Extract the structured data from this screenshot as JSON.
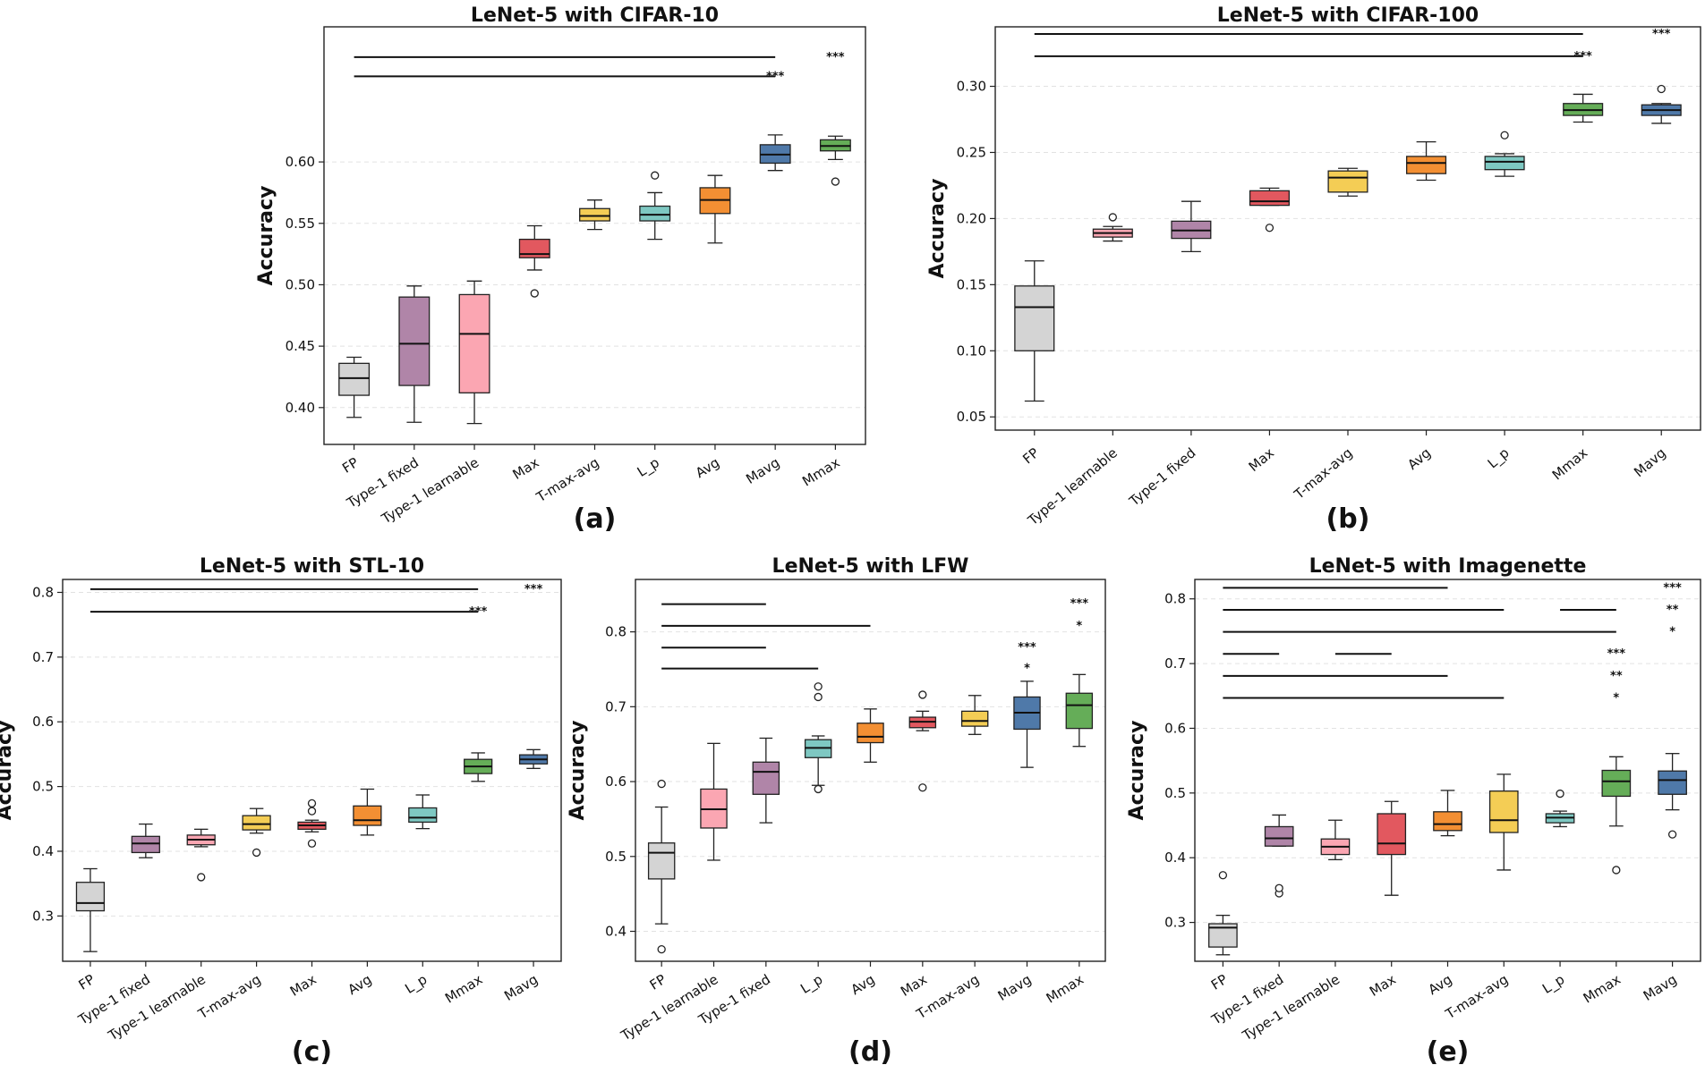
{
  "chart_data": [
    {
      "type": "box",
      "title": "LeNet-5 with CIFAR-10",
      "panel_label": "(a)",
      "ylabel": "Accuracy",
      "ylim": [
        0.37,
        0.71
      ],
      "yticks": [
        "0.40",
        "0.45",
        "0.50",
        "0.55",
        "0.60"
      ],
      "grid": true,
      "categories": [
        "FP",
        "Type-1 fixed",
        "Type-1 learnable",
        "Max",
        "T-max-avg",
        "L_p",
        "Avg",
        "Mavg",
        "Mmax"
      ],
      "colors": [
        "#d4d4d4",
        "#b085a8",
        "#fba6b2",
        "#e2585f",
        "#f4cd55",
        "#7ec8c2",
        "#f38f33",
        "#4f79a9",
        "#65ad58"
      ],
      "boxes": [
        {
          "whislo": 0.392,
          "q1": 0.41,
          "med": 0.424,
          "q3": 0.436,
          "whishi": 0.441,
          "fliers": []
        },
        {
          "whislo": 0.388,
          "q1": 0.418,
          "med": 0.452,
          "q3": 0.49,
          "whishi": 0.499,
          "fliers": []
        },
        {
          "whislo": 0.387,
          "q1": 0.412,
          "med": 0.46,
          "q3": 0.492,
          "whishi": 0.503,
          "fliers": []
        },
        {
          "whislo": 0.512,
          "q1": 0.522,
          "med": 0.525,
          "q3": 0.537,
          "whishi": 0.548,
          "fliers": [
            0.493
          ]
        },
        {
          "whislo": 0.545,
          "q1": 0.552,
          "med": 0.556,
          "q3": 0.562,
          "whishi": 0.569,
          "fliers": []
        },
        {
          "whislo": 0.537,
          "q1": 0.552,
          "med": 0.557,
          "q3": 0.564,
          "whishi": 0.575,
          "fliers": [
            0.589
          ]
        },
        {
          "whislo": 0.534,
          "q1": 0.558,
          "med": 0.569,
          "q3": 0.579,
          "whishi": 0.589,
          "fliers": []
        },
        {
          "whislo": 0.593,
          "q1": 0.599,
          "med": 0.606,
          "q3": 0.614,
          "whishi": 0.622,
          "fliers": []
        },
        {
          "whislo": 0.602,
          "q1": 0.609,
          "med": 0.613,
          "q3": 0.618,
          "whishi": 0.621,
          "fliers": [
            0.584
          ]
        }
      ],
      "sig_lines": [
        {
          "from": 0,
          "to": 7,
          "y": 0.6853
        },
        {
          "from": 0,
          "to": 7,
          "y": 0.6697
        }
      ],
      "sig_labels": [
        {
          "cat": 8,
          "y": 0.6853,
          "text": "***"
        },
        {
          "cat": 7,
          "y": 0.6697,
          "text": "***"
        }
      ]
    },
    {
      "type": "box",
      "title": "LeNet-5 with CIFAR-100",
      "panel_label": "(b)",
      "ylabel": "Accuracy",
      "ylim": [
        0.04,
        0.345
      ],
      "yticks": [
        "0.05",
        "0.10",
        "0.15",
        "0.20",
        "0.25",
        "0.30"
      ],
      "grid": true,
      "categories": [
        "FP",
        "Type-1 learnable",
        "Type-1 fixed",
        "Max",
        "T-max-avg",
        "Avg",
        "L_p",
        "Mmax",
        "Mavg"
      ],
      "colors": [
        "#d4d4d4",
        "#fba6b2",
        "#b085a8",
        "#e2585f",
        "#f4cd55",
        "#f38f33",
        "#7ec8c2",
        "#65ad58",
        "#4f79a9"
      ],
      "boxes": [
        {
          "whislo": 0.062,
          "q1": 0.1,
          "med": 0.133,
          "q3": 0.149,
          "whishi": 0.168,
          "fliers": []
        },
        {
          "whislo": 0.183,
          "q1": 0.186,
          "med": 0.189,
          "q3": 0.192,
          "whishi": 0.194,
          "fliers": [
            0.201
          ]
        },
        {
          "whislo": 0.175,
          "q1": 0.185,
          "med": 0.191,
          "q3": 0.198,
          "whishi": 0.213,
          "fliers": []
        },
        {
          "whislo": 0.21,
          "q1": 0.21,
          "med": 0.213,
          "q3": 0.221,
          "whishi": 0.223,
          "fliers": [
            0.193
          ]
        },
        {
          "whislo": 0.217,
          "q1": 0.22,
          "med": 0.231,
          "q3": 0.236,
          "whishi": 0.238,
          "fliers": []
        },
        {
          "whislo": 0.229,
          "q1": 0.234,
          "med": 0.242,
          "q3": 0.247,
          "whishi": 0.258,
          "fliers": []
        },
        {
          "whislo": 0.232,
          "q1": 0.237,
          "med": 0.243,
          "q3": 0.247,
          "whishi": 0.249,
          "fliers": [
            0.263
          ]
        },
        {
          "whislo": 0.273,
          "q1": 0.278,
          "med": 0.282,
          "q3": 0.287,
          "whishi": 0.294,
          "fliers": []
        },
        {
          "whislo": 0.272,
          "q1": 0.278,
          "med": 0.282,
          "q3": 0.286,
          "whishi": 0.287,
          "fliers": [
            0.298
          ]
        }
      ],
      "sig_lines": [
        {
          "from": 0,
          "to": 7,
          "y": 0.3396
        },
        {
          "from": 0,
          "to": 7,
          "y": 0.3228
        }
      ],
      "sig_labels": [
        {
          "cat": 8,
          "y": 0.3396,
          "text": "***"
        },
        {
          "cat": 7,
          "y": 0.3228,
          "text": "***"
        }
      ]
    },
    {
      "type": "box",
      "title": "LeNet-5 with STL-10",
      "panel_label": "(c)",
      "ylabel": "Accuracy",
      "ylim": [
        0.23,
        0.82
      ],
      "yticks": [
        "0.3",
        "0.4",
        "0.5",
        "0.6",
        "0.7",
        "0.8"
      ],
      "grid": true,
      "categories": [
        "FP",
        "Type-1 fixed",
        "Type-1 learnable",
        "T-max-avg",
        "Max",
        "Avg",
        "L_p",
        "Mmax",
        "Mavg"
      ],
      "colors": [
        "#d4d4d4",
        "#b085a8",
        "#fba6b2",
        "#f4cd55",
        "#e2585f",
        "#f38f33",
        "#7ec8c2",
        "#65ad58",
        "#4f79a9"
      ],
      "boxes": [
        {
          "whislo": 0.245,
          "q1": 0.308,
          "med": 0.32,
          "q3": 0.352,
          "whishi": 0.373,
          "fliers": []
        },
        {
          "whislo": 0.39,
          "q1": 0.398,
          "med": 0.412,
          "q3": 0.423,
          "whishi": 0.442,
          "fliers": []
        },
        {
          "whislo": 0.407,
          "q1": 0.41,
          "med": 0.418,
          "q3": 0.425,
          "whishi": 0.434,
          "fliers": [
            0.36
          ]
        },
        {
          "whislo": 0.428,
          "q1": 0.433,
          "med": 0.442,
          "q3": 0.455,
          "whishi": 0.466,
          "fliers": [
            0.398
          ]
        },
        {
          "whislo": 0.43,
          "q1": 0.434,
          "med": 0.44,
          "q3": 0.445,
          "whishi": 0.448,
          "fliers": [
            0.412,
            0.462,
            0.474
          ]
        },
        {
          "whislo": 0.425,
          "q1": 0.44,
          "med": 0.448,
          "q3": 0.47,
          "whishi": 0.496,
          "fliers": []
        },
        {
          "whislo": 0.435,
          "q1": 0.445,
          "med": 0.452,
          "q3": 0.467,
          "whishi": 0.487,
          "fliers": []
        },
        {
          "whislo": 0.508,
          "q1": 0.52,
          "med": 0.531,
          "q3": 0.542,
          "whishi": 0.552,
          "fliers": []
        },
        {
          "whislo": 0.528,
          "q1": 0.535,
          "med": 0.542,
          "q3": 0.549,
          "whishi": 0.557,
          "fliers": []
        }
      ],
      "sig_lines": [
        {
          "from": 0,
          "to": 7,
          "y": 0.805
        },
        {
          "from": 0,
          "to": 7,
          "y": 0.77
        }
      ],
      "sig_labels": [
        {
          "cat": 8,
          "y": 0.805,
          "text": "***"
        },
        {
          "cat": 7,
          "y": 0.77,
          "text": "***"
        }
      ]
    },
    {
      "type": "box",
      "title": "LeNet-5 with LFW",
      "panel_label": "(d)",
      "ylabel": "Accuracy",
      "ylim": [
        0.36,
        0.87
      ],
      "yticks": [
        "0.4",
        "0.5",
        "0.6",
        "0.7",
        "0.8"
      ],
      "grid": true,
      "categories": [
        "FP",
        "Type-1 learnable",
        "Type-1 fixed",
        "L_p",
        "Avg",
        "Max",
        "T-max-avg",
        "Mavg",
        "Mmax"
      ],
      "colors": [
        "#d4d4d4",
        "#fba6b2",
        "#b085a8",
        "#7ec8c2",
        "#f38f33",
        "#e2585f",
        "#f4cd55",
        "#4f79a9",
        "#65ad58"
      ],
      "boxes": [
        {
          "whislo": 0.41,
          "q1": 0.47,
          "med": 0.505,
          "q3": 0.518,
          "whishi": 0.566,
          "fliers": [
            0.376,
            0.597
          ]
        },
        {
          "whislo": 0.495,
          "q1": 0.538,
          "med": 0.563,
          "q3": 0.59,
          "whishi": 0.651,
          "fliers": []
        },
        {
          "whislo": 0.545,
          "q1": 0.583,
          "med": 0.613,
          "q3": 0.626,
          "whishi": 0.658,
          "fliers": []
        },
        {
          "whislo": 0.595,
          "q1": 0.632,
          "med": 0.645,
          "q3": 0.656,
          "whishi": 0.661,
          "fliers": [
            0.59,
            0.713,
            0.727
          ]
        },
        {
          "whislo": 0.626,
          "q1": 0.652,
          "med": 0.66,
          "q3": 0.678,
          "whishi": 0.697,
          "fliers": []
        },
        {
          "whislo": 0.668,
          "q1": 0.672,
          "med": 0.68,
          "q3": 0.686,
          "whishi": 0.694,
          "fliers": [
            0.592,
            0.716
          ]
        },
        {
          "whislo": 0.663,
          "q1": 0.674,
          "med": 0.681,
          "q3": 0.694,
          "whishi": 0.715,
          "fliers": []
        },
        {
          "whislo": 0.619,
          "q1": 0.67,
          "med": 0.692,
          "q3": 0.713,
          "whishi": 0.734,
          "fliers": []
        },
        {
          "whislo": 0.647,
          "q1": 0.671,
          "med": 0.702,
          "q3": 0.718,
          "whishi": 0.743,
          "fliers": []
        }
      ],
      "sig_lines": [
        {
          "from": 0,
          "to": 2,
          "y": 0.837
        },
        {
          "from": 0,
          "to": 4,
          "y": 0.808
        },
        {
          "from": 0,
          "to": 2,
          "y": 0.779
        },
        {
          "from": 0,
          "to": 3,
          "y": 0.751
        }
      ],
      "sig_labels": [
        {
          "cat": 8,
          "y": 0.838,
          "text": "***"
        },
        {
          "cat": 8,
          "y": 0.808,
          "text": "*"
        },
        {
          "cat": 7,
          "y": 0.779,
          "text": "***"
        },
        {
          "cat": 7,
          "y": 0.751,
          "text": "*"
        }
      ]
    },
    {
      "type": "box",
      "title": "LeNet-5 with Imagenette",
      "panel_label": "(e)",
      "ylabel": "Accuracy",
      "ylim": [
        0.24,
        0.83
      ],
      "yticks": [
        "0.3",
        "0.4",
        "0.5",
        "0.6",
        "0.7",
        "0.8"
      ],
      "grid": true,
      "categories": [
        "FP",
        "Type-1 fixed",
        "Type-1 learnable",
        "Max",
        "Avg",
        "T-max-avg",
        "L_p",
        "Mmax",
        "Mavg"
      ],
      "colors": [
        "#d4d4d4",
        "#b085a8",
        "#fba6b2",
        "#e2585f",
        "#f38f33",
        "#f4cd55",
        "#7ec8c2",
        "#65ad58",
        "#4f79a9"
      ],
      "boxes": [
        {
          "whislo": 0.25,
          "q1": 0.262,
          "med": 0.292,
          "q3": 0.298,
          "whishi": 0.311,
          "fliers": [
            0.373
          ]
        },
        {
          "whislo": 0.418,
          "q1": 0.418,
          "med": 0.43,
          "q3": 0.448,
          "whishi": 0.466,
          "fliers": [
            0.345,
            0.353
          ]
        },
        {
          "whislo": 0.397,
          "q1": 0.405,
          "med": 0.417,
          "q3": 0.429,
          "whishi": 0.458,
          "fliers": []
        },
        {
          "whislo": 0.342,
          "q1": 0.405,
          "med": 0.422,
          "q3": 0.468,
          "whishi": 0.487,
          "fliers": []
        },
        {
          "whislo": 0.434,
          "q1": 0.442,
          "med": 0.452,
          "q3": 0.471,
          "whishi": 0.504,
          "fliers": []
        },
        {
          "whislo": 0.381,
          "q1": 0.439,
          "med": 0.458,
          "q3": 0.503,
          "whishi": 0.529,
          "fliers": []
        },
        {
          "whislo": 0.448,
          "q1": 0.454,
          "med": 0.462,
          "q3": 0.468,
          "whishi": 0.472,
          "fliers": [
            0.499
          ]
        },
        {
          "whislo": 0.449,
          "q1": 0.495,
          "med": 0.518,
          "q3": 0.535,
          "whishi": 0.556,
          "fliers": [
            0.381
          ]
        },
        {
          "whislo": 0.474,
          "q1": 0.498,
          "med": 0.52,
          "q3": 0.534,
          "whishi": 0.561,
          "fliers": [
            0.436
          ]
        }
      ],
      "sig_lines": [
        {
          "from": 0,
          "to": 4,
          "y": 0.817
        },
        {
          "from": 0,
          "to": 5,
          "y": 0.783
        },
        {
          "from": 6,
          "to": 7,
          "y": 0.783
        },
        {
          "from": 0,
          "to": 7,
          "y": 0.749
        },
        {
          "from": 0,
          "to": 1,
          "y": 0.715
        },
        {
          "from": 2,
          "to": 3,
          "y": 0.715
        },
        {
          "from": 0,
          "to": 4,
          "y": 0.681
        },
        {
          "from": 0,
          "to": 5,
          "y": 0.647
        }
      ],
      "sig_labels": [
        {
          "cat": 8,
          "y": 0.817,
          "text": "***"
        },
        {
          "cat": 8,
          "y": 0.783,
          "text": "**"
        },
        {
          "cat": 8,
          "y": 0.749,
          "text": "*"
        },
        {
          "cat": 7,
          "y": 0.715,
          "text": "***"
        },
        {
          "cat": 7,
          "y": 0.681,
          "text": "**"
        },
        {
          "cat": 7,
          "y": 0.647,
          "text": "*"
        }
      ]
    }
  ]
}
